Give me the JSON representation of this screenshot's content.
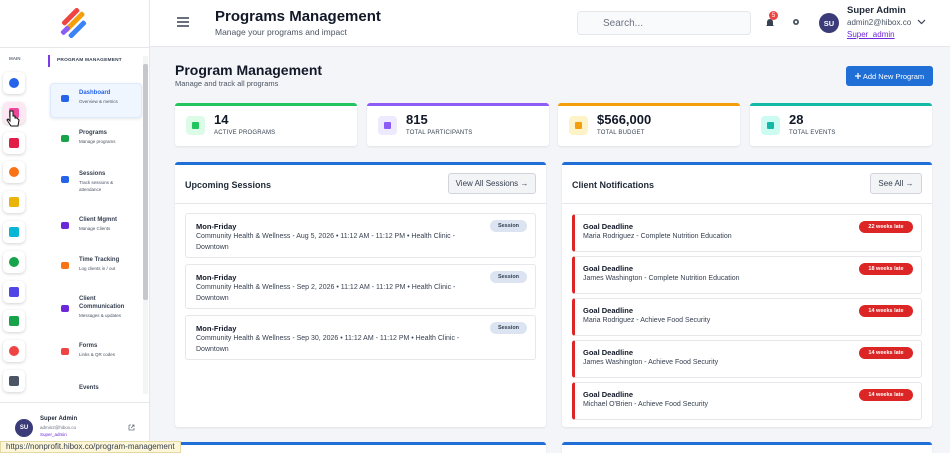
{
  "header": {
    "title": "Programs Management",
    "subtitle": "Manage your programs and impact",
    "search_placeholder": "Search...",
    "notification_count": "5",
    "user": {
      "initials": "SU",
      "name": "Super Admin",
      "email": "admin2@hibox.co",
      "role": "Super_admin"
    }
  },
  "sidebar": {
    "section_main": "MAIN",
    "section_title": "PROGRAM MANAGEMENT",
    "nav": [
      {
        "label": "Dashboard",
        "sub": "Overview & metrics"
      },
      {
        "label": "Programs",
        "sub": "Manage programs"
      },
      {
        "label": "Sessions",
        "sub": "Track sessions & attendance"
      },
      {
        "label": "Client Mgmnt",
        "sub": "Manage Clients"
      },
      {
        "label": "Time Tracking",
        "sub": "Log clients in / out"
      },
      {
        "label": "Client Communication",
        "sub": "Messages & updates"
      },
      {
        "label": "Forms",
        "sub": "Links & QR codes"
      },
      {
        "label": "Events"
      }
    ],
    "footer": {
      "initials": "SU",
      "name": "Super Admin",
      "email": "admin2@hibox.co",
      "role": "Super_admin"
    }
  },
  "page": {
    "title": "Program Management",
    "subtitle": "Manage and track all programs",
    "add_button": "Add New Program"
  },
  "stats": [
    {
      "value": "14",
      "label": "ACTIVE PROGRAMS"
    },
    {
      "value": "815",
      "label": "TOTAL PARTICIPANTS"
    },
    {
      "value": "$566,000",
      "label": "TOTAL BUDGET"
    },
    {
      "value": "28",
      "label": "TOTAL EVENTS"
    }
  ],
  "sessions": {
    "title": "Upcoming Sessions",
    "view_all": "View All Sessions →",
    "items": [
      {
        "title": "Mon-Friday",
        "detail": "Community Health & Wellness - Aug 5, 2026 • 11:12 AM - 11:12 PM • Health Clinic - Downtown",
        "badge": "Session"
      },
      {
        "title": "Mon-Friday",
        "detail": "Community Health & Wellness - Sep 2, 2026 • 11:12 AM - 11:12 PM • Health Clinic - Downtown",
        "badge": "Session"
      },
      {
        "title": "Mon-Friday",
        "detail": "Community Health & Wellness - Sep 30, 2026 • 11:12 AM - 11:12 PM • Health Clinic - Downtown",
        "badge": "Session"
      }
    ]
  },
  "notifications": {
    "title": "Client Notifications",
    "see_all": "See All →",
    "items": [
      {
        "title": "Goal Deadline",
        "detail": "Maria Rodriguez - Complete Nutrition Education",
        "badge": "22 weeks late"
      },
      {
        "title": "Goal Deadline",
        "detail": "James Washington - Complete Nutrition Education",
        "badge": "18 weeks late"
      },
      {
        "title": "Goal Deadline",
        "detail": "Maria Rodriguez - Achieve Food Security",
        "badge": "14 weeks late"
      },
      {
        "title": "Goal Deadline",
        "detail": "James Washington - Achieve Food Security",
        "badge": "14 weeks late"
      },
      {
        "title": "Goal Deadline",
        "detail": "Michael O'Brien - Achieve Food Security",
        "badge": "14 weeks late"
      }
    ]
  },
  "status_bar": {
    "url": "https://nonprofit.hibox.co/program-management"
  }
}
